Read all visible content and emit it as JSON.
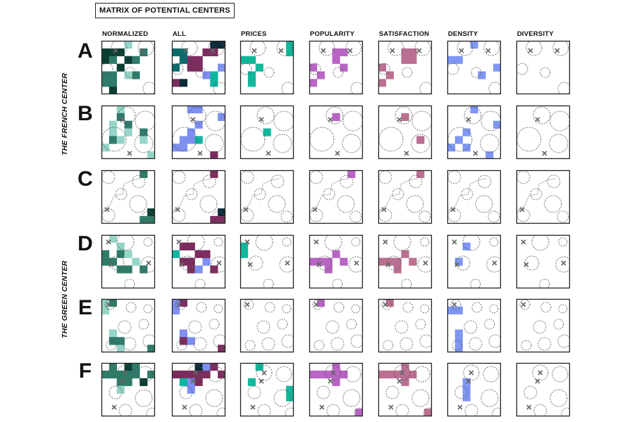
{
  "title": "MATRIX OF POTENTIAL CENTERS",
  "columns": [
    "NORMALIZED",
    "ALL",
    "PRICES",
    "POPULARITY",
    "SATISFACTION",
    "DENSITY",
    "DIVERSITY"
  ],
  "rows": [
    "A",
    "B",
    "C",
    "D",
    "E",
    "F"
  ],
  "groups": [
    {
      "label": "THE FRENCH CENTER",
      "rows": [
        "A",
        "B",
        "C"
      ]
    },
    {
      "label": "THE GREEN CENTER",
      "rows": [
        "D",
        "E",
        "F"
      ]
    }
  ],
  "colors": {
    "NORMALIZED": [
      "#0b3d33",
      "#2f7b6a",
      "#95d5c7"
    ],
    "ALL": [
      "#0b2a3a",
      "#7b2d5e",
      "#0fb5a0",
      "#7e8ff0",
      "#0b6b6b"
    ],
    "PRICES": [
      "#11b89b"
    ],
    "POPULARITY": [
      "#b865c4"
    ],
    "SATISFACTION": [
      "#bb6f92"
    ],
    "DENSITY": [
      "#7f97f3"
    ],
    "DIVERSITY": []
  }
}
